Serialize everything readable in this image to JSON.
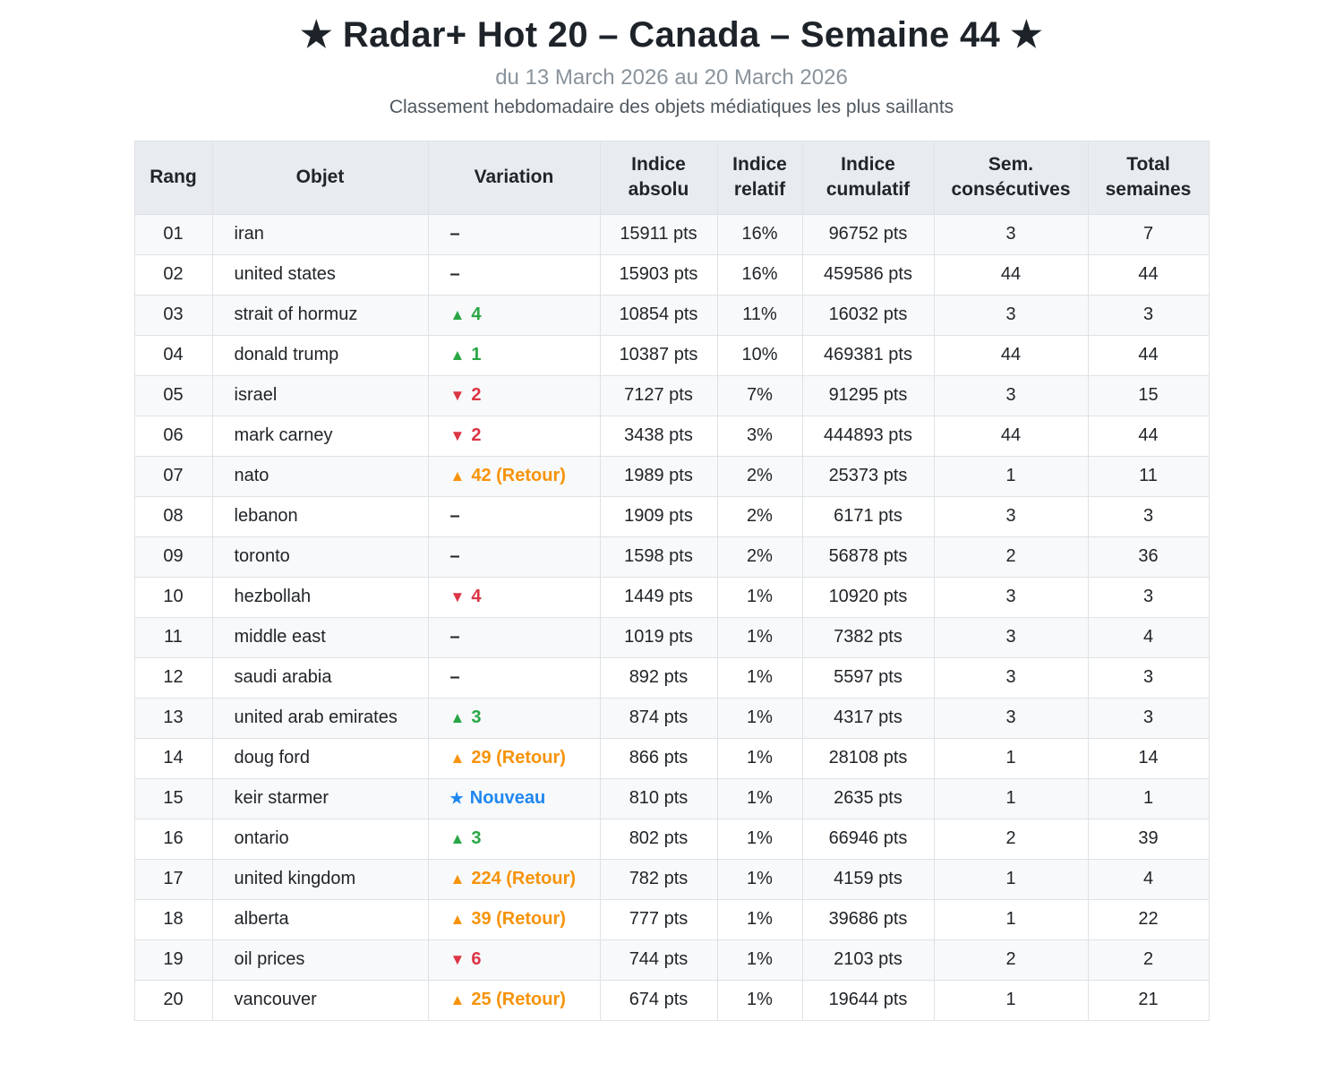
{
  "page": {
    "title": "★ Radar+ Hot 20 – Canada – Semaine 44 ★",
    "subtitle": "du 13 March 2026 au 20 March 2026",
    "description": "Classement hebdomadaire des objets médiatiques les plus saillants"
  },
  "colors": {
    "up_green": "#28a745",
    "down_red": "#dc3545",
    "return_orange": "#f7930a",
    "new_blue": "#1e87f0",
    "header_bg": "#e9ecef",
    "alt_row_bg": "#f8f9fa",
    "border": "#dee2e6",
    "text": "#212529"
  },
  "icons": {
    "up": "▲",
    "down": "▼",
    "new": "★",
    "none": "–",
    "title_star": "★"
  },
  "chart_data": {
    "type": "table",
    "title": "★ Radar+ Hot 20 – Canada – Semaine 44 ★",
    "subtitle": "du 13 March 2026 au 20 March 2026",
    "columns": [
      "Rang",
      "Objet",
      "Variation",
      "Indice absolu",
      "Indice relatif",
      "Indice cumulatif",
      "Sem. consécutives",
      "Total semaines"
    ],
    "rows": [
      {
        "rank": "01",
        "object": "iran",
        "variation": {
          "symbol": "–",
          "label": "",
          "type": "none"
        },
        "abs": "15911 pts",
        "rel": "16%",
        "cum": "96752 pts",
        "consec": "3",
        "total": "7"
      },
      {
        "rank": "02",
        "object": "united states",
        "variation": {
          "symbol": "–",
          "label": "",
          "type": "none"
        },
        "abs": "15903 pts",
        "rel": "16%",
        "cum": "459586 pts",
        "consec": "44",
        "total": "44"
      },
      {
        "rank": "03",
        "object": "strait of hormuz",
        "variation": {
          "symbol": "▲",
          "label": "4",
          "type": "up"
        },
        "abs": "10854 pts",
        "rel": "11%",
        "cum": "16032 pts",
        "consec": "3",
        "total": "3"
      },
      {
        "rank": "04",
        "object": "donald trump",
        "variation": {
          "symbol": "▲",
          "label": "1",
          "type": "up"
        },
        "abs": "10387 pts",
        "rel": "10%",
        "cum": "469381 pts",
        "consec": "44",
        "total": "44"
      },
      {
        "rank": "05",
        "object": "israel",
        "variation": {
          "symbol": "▼",
          "label": "2",
          "type": "down"
        },
        "abs": "7127 pts",
        "rel": "7%",
        "cum": "91295 pts",
        "consec": "3",
        "total": "15"
      },
      {
        "rank": "06",
        "object": "mark carney",
        "variation": {
          "symbol": "▼",
          "label": "2",
          "type": "down"
        },
        "abs": "3438 pts",
        "rel": "3%",
        "cum": "444893 pts",
        "consec": "44",
        "total": "44"
      },
      {
        "rank": "07",
        "object": "nato",
        "variation": {
          "symbol": "▲",
          "label": "42 (Retour)",
          "type": "return"
        },
        "abs": "1989 pts",
        "rel": "2%",
        "cum": "25373 pts",
        "consec": "1",
        "total": "11"
      },
      {
        "rank": "08",
        "object": "lebanon",
        "variation": {
          "symbol": "–",
          "label": "",
          "type": "none"
        },
        "abs": "1909 pts",
        "rel": "2%",
        "cum": "6171 pts",
        "consec": "3",
        "total": "3"
      },
      {
        "rank": "09",
        "object": "toronto",
        "variation": {
          "symbol": "–",
          "label": "",
          "type": "none"
        },
        "abs": "1598 pts",
        "rel": "2%",
        "cum": "56878 pts",
        "consec": "2",
        "total": "36"
      },
      {
        "rank": "10",
        "object": "hezbollah",
        "variation": {
          "symbol": "▼",
          "label": "4",
          "type": "down"
        },
        "abs": "1449 pts",
        "rel": "1%",
        "cum": "10920 pts",
        "consec": "3",
        "total": "3"
      },
      {
        "rank": "11",
        "object": "middle east",
        "variation": {
          "symbol": "–",
          "label": "",
          "type": "none"
        },
        "abs": "1019 pts",
        "rel": "1%",
        "cum": "7382 pts",
        "consec": "3",
        "total": "4"
      },
      {
        "rank": "12",
        "object": "saudi arabia",
        "variation": {
          "symbol": "–",
          "label": "",
          "type": "none"
        },
        "abs": "892 pts",
        "rel": "1%",
        "cum": "5597 pts",
        "consec": "3",
        "total": "3"
      },
      {
        "rank": "13",
        "object": "united arab emirates",
        "variation": {
          "symbol": "▲",
          "label": "3",
          "type": "up"
        },
        "abs": "874 pts",
        "rel": "1%",
        "cum": "4317 pts",
        "consec": "3",
        "total": "3"
      },
      {
        "rank": "14",
        "object": "doug ford",
        "variation": {
          "symbol": "▲",
          "label": "29 (Retour)",
          "type": "return"
        },
        "abs": "866 pts",
        "rel": "1%",
        "cum": "28108 pts",
        "consec": "1",
        "total": "14"
      },
      {
        "rank": "15",
        "object": "keir starmer",
        "variation": {
          "symbol": "★",
          "label": "Nouveau",
          "type": "new"
        },
        "abs": "810 pts",
        "rel": "1%",
        "cum": "2635 pts",
        "consec": "1",
        "total": "1"
      },
      {
        "rank": "16",
        "object": "ontario",
        "variation": {
          "symbol": "▲",
          "label": "3",
          "type": "up"
        },
        "abs": "802 pts",
        "rel": "1%",
        "cum": "66946 pts",
        "consec": "2",
        "total": "39"
      },
      {
        "rank": "17",
        "object": "united kingdom",
        "variation": {
          "symbol": "▲",
          "label": "224 (Retour)",
          "type": "return"
        },
        "abs": "782 pts",
        "rel": "1%",
        "cum": "4159 pts",
        "consec": "1",
        "total": "4"
      },
      {
        "rank": "18",
        "object": "alberta",
        "variation": {
          "symbol": "▲",
          "label": "39 (Retour)",
          "type": "return"
        },
        "abs": "777 pts",
        "rel": "1%",
        "cum": "39686 pts",
        "consec": "1",
        "total": "22"
      },
      {
        "rank": "19",
        "object": "oil prices",
        "variation": {
          "symbol": "▼",
          "label": "6",
          "type": "down"
        },
        "abs": "744 pts",
        "rel": "1%",
        "cum": "2103 pts",
        "consec": "2",
        "total": "2"
      },
      {
        "rank": "20",
        "object": "vancouver",
        "variation": {
          "symbol": "▲",
          "label": "25 (Retour)",
          "type": "return"
        },
        "abs": "674 pts",
        "rel": "1%",
        "cum": "19644 pts",
        "consec": "1",
        "total": "21"
      }
    ]
  }
}
